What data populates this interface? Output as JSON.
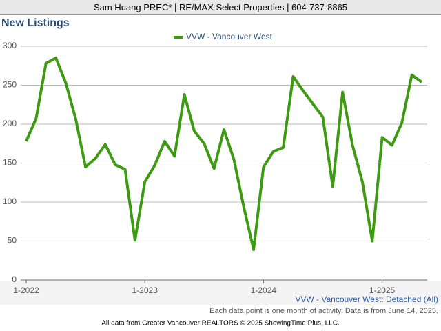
{
  "header": "Sam Huang PREC* | RE/MAX Select Properties | 604-737-8865",
  "chart_data": {
    "type": "line",
    "title": "New Listings",
    "categories": [
      "1-2022",
      null,
      null,
      null,
      null,
      null,
      null,
      null,
      null,
      null,
      null,
      null,
      "1-2023",
      null,
      null,
      null,
      null,
      null,
      null,
      null,
      null,
      null,
      null,
      null,
      "1-2024",
      null,
      null,
      null,
      null,
      null,
      null,
      null,
      null,
      null,
      null,
      null,
      "1-2025",
      null,
      null,
      null,
      null
    ],
    "series": [
      {
        "name": "VVW - Vancouver West",
        "color": "#3d9a12",
        "values": [
          178,
          207,
          278,
          285,
          253,
          207,
          145,
          156,
          174,
          148,
          142,
          51,
          126,
          147,
          178,
          159,
          238,
          191,
          175,
          143,
          193,
          155,
          94,
          39,
          145,
          165,
          170,
          261,
          243,
          226,
          209,
          120,
          241,
          173,
          126,
          50,
          183,
          173,
          202,
          263,
          254
        ]
      }
    ],
    "ylim": [
      0,
      300
    ],
    "yticks": [
      0,
      50,
      100,
      150,
      200,
      250,
      300
    ],
    "grid": true,
    "legend": "top"
  },
  "caption": "VVW - Vancouver West: Detached (All)",
  "note": "Each data point is one month of activity. Data is from June 14, 2025.",
  "footer": "All data from Greater Vancouver REALTORS © 2025 ShowingTime Plus, LLC."
}
